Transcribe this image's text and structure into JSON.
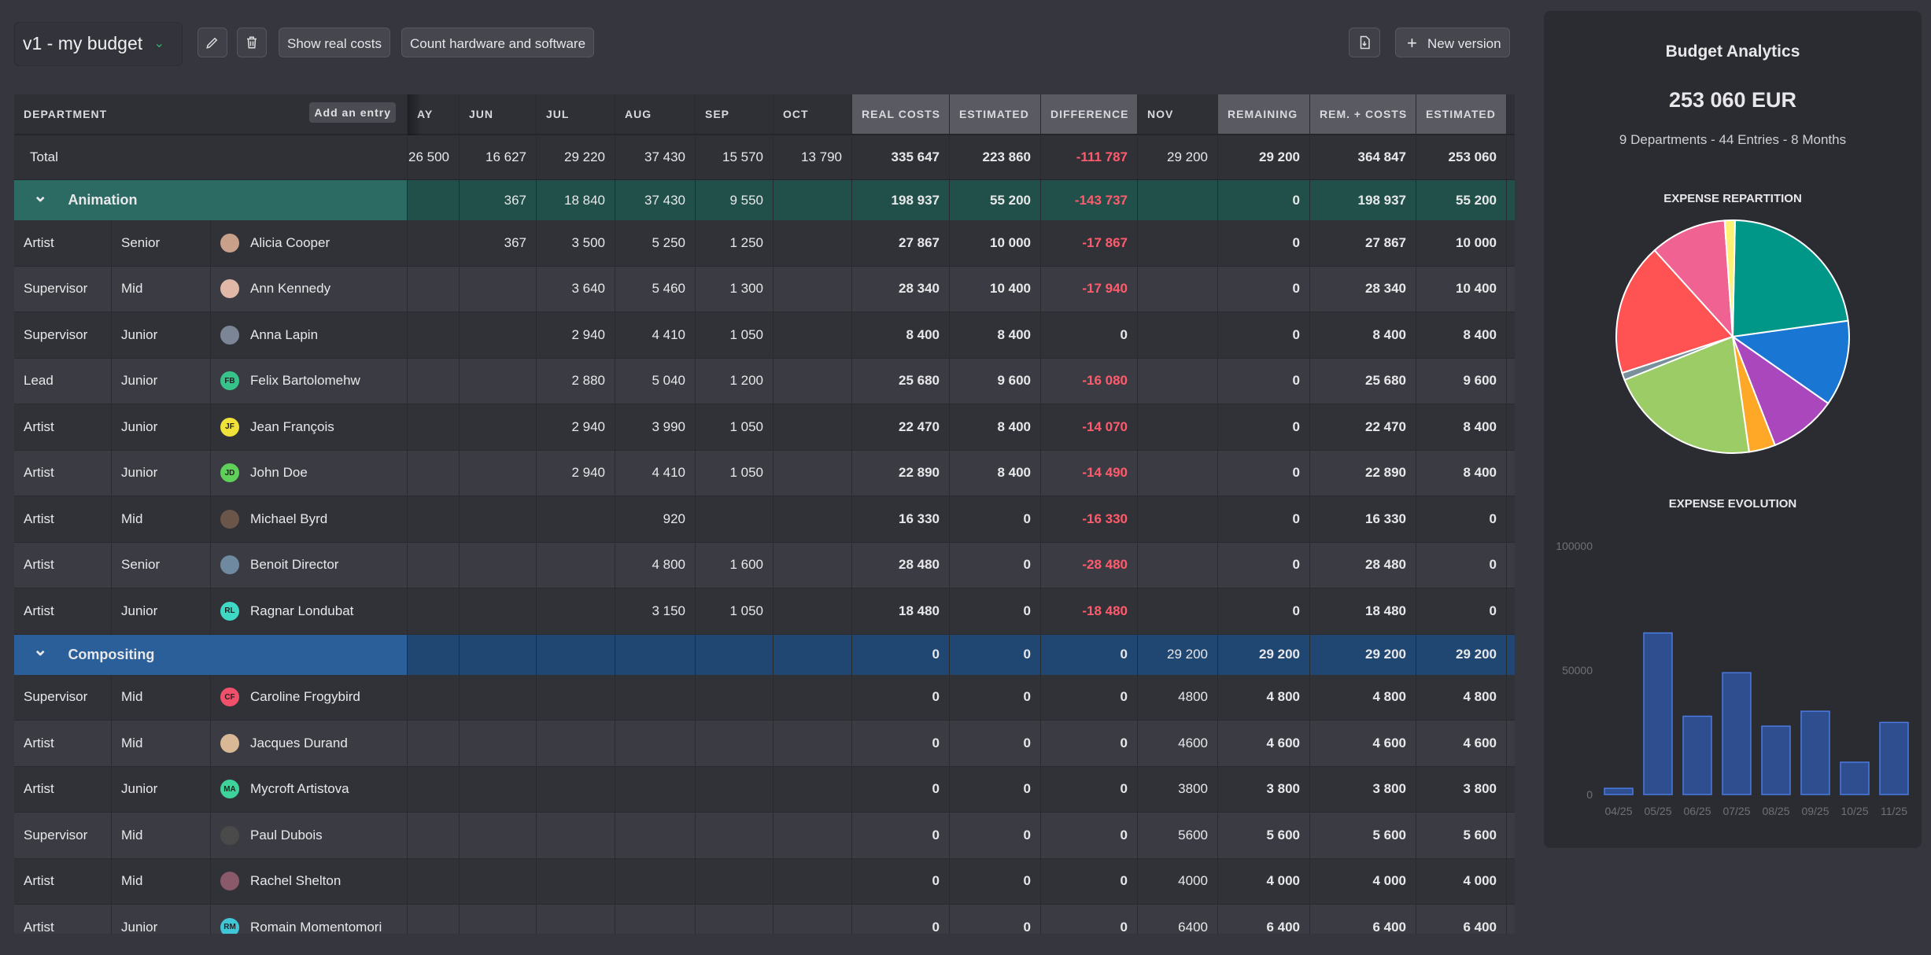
{
  "toolbar": {
    "version": "v1 - my budget",
    "show_real": "Show real costs",
    "count_hw": "Count hardware and software",
    "new_version": "New version",
    "icons": [
      "pencil-icon",
      "trash-icon",
      "chevron-down-icon",
      "file-export-icon",
      "plus-icon"
    ]
  },
  "table": {
    "dept_header": "DEPARTMENT",
    "add_entry": "Add an entry",
    "columns": [
      "AY",
      "JUN",
      "JUL",
      "AUG",
      "SEP",
      "OCT",
      "REAL COSTS",
      "ESTIMATED",
      "DIFFERENCE",
      "NOV",
      "REMAINING",
      "REM. + COSTS",
      "ESTIMATED"
    ],
    "total": {
      "label": "Total",
      "values": [
        "26 500",
        "16 627",
        "29 220",
        "37 430",
        "15 570",
        "13 790",
        "335 647",
        "223 860",
        "-111 787",
        "29 200",
        "29 200",
        "364 847",
        "253 060"
      ]
    },
    "groups": [
      {
        "name": "Animation",
        "color": "#2c6b63",
        "values": [
          "",
          "367",
          "18 840",
          "37 430",
          "9 550",
          "",
          "198 937",
          "55 200",
          "-143 737",
          "",
          "0",
          "198 937",
          "55 200"
        ],
        "rows": [
          {
            "role": "Artist",
            "level": "Senior",
            "person": "Alicia Cooper",
            "initials": "",
            "avatar": "#c9a089",
            "values": [
              "",
              "367",
              "3 500",
              "5 250",
              "1 250",
              "",
              "27 867",
              "10 000",
              "-17 867",
              "",
              "0",
              "27 867",
              "10 000"
            ]
          },
          {
            "role": "Supervisor",
            "level": "Mid",
            "person": "Ann Kennedy",
            "initials": "",
            "avatar": "#e0b8a8",
            "values": [
              "",
              "",
              "3 640",
              "5 460",
              "1 300",
              "",
              "28 340",
              "10 400",
              "-17 940",
              "",
              "0",
              "28 340",
              "10 400"
            ]
          },
          {
            "role": "Supervisor",
            "level": "Junior",
            "person": "Anna Lapin",
            "initials": "",
            "avatar": "#7c8596",
            "values": [
              "",
              "",
              "2 940",
              "4 410",
              "1 050",
              "",
              "8 400",
              "8 400",
              "0",
              "",
              "0",
              "8 400",
              "8 400"
            ]
          },
          {
            "role": "Lead",
            "level": "Junior",
            "person": "Felix Bartolomehw",
            "initials": "FB",
            "avatar": "#37c48a",
            "values": [
              "",
              "",
              "2 880",
              "5 040",
              "1 200",
              "",
              "25 680",
              "9 600",
              "-16 080",
              "",
              "0",
              "25 680",
              "9 600"
            ]
          },
          {
            "role": "Artist",
            "level": "Junior",
            "person": "Jean François",
            "initials": "JF",
            "avatar": "#f1e23a",
            "values": [
              "",
              "",
              "2 940",
              "3 990",
              "1 050",
              "",
              "22 470",
              "8 400",
              "-14 070",
              "",
              "0",
              "22 470",
              "8 400"
            ]
          },
          {
            "role": "Artist",
            "level": "Junior",
            "person": "John Doe",
            "initials": "JD",
            "avatar": "#5fd05a",
            "values": [
              "",
              "",
              "2 940",
              "4 410",
              "1 050",
              "",
              "22 890",
              "8 400",
              "-14 490",
              "",
              "0",
              "22 890",
              "8 400"
            ]
          },
          {
            "role": "Artist",
            "level": "Mid",
            "person": "Michael Byrd",
            "initials": "",
            "avatar": "#6a5548",
            "values": [
              "",
              "",
              "",
              "920",
              "",
              "",
              "16 330",
              "0",
              "-16 330",
              "",
              "0",
              "16 330",
              "0"
            ]
          },
          {
            "role": "Artist",
            "level": "Senior",
            "person": "Benoit Director",
            "initials": "",
            "avatar": "#6f8aa0",
            "values": [
              "",
              "",
              "",
              "4 800",
              "1 600",
              "",
              "28 480",
              "0",
              "-28 480",
              "",
              "0",
              "28 480",
              "0"
            ]
          },
          {
            "role": "Artist",
            "level": "Junior",
            "person": "Ragnar Londubat",
            "initials": "RL",
            "avatar": "#3fd8c4",
            "values": [
              "",
              "",
              "",
              "3 150",
              "1 050",
              "",
              "18 480",
              "0",
              "-18 480",
              "",
              "0",
              "18 480",
              "0"
            ]
          }
        ]
      },
      {
        "name": "Compositing",
        "color": "#2b5f99",
        "values": [
          "",
          "",
          "",
          "",
          "",
          "",
          "0",
          "0",
          "0",
          "29 200",
          "29 200",
          "29 200",
          "29 200"
        ],
        "rows": [
          {
            "role": "Supervisor",
            "level": "Mid",
            "person": "Caroline Frogybird",
            "initials": "CF",
            "avatar": "#f0506a",
            "values": [
              "",
              "",
              "",
              "",
              "",
              "",
              "0",
              "0",
              "0",
              "4800",
              "4 800",
              "4 800",
              "4 800"
            ]
          },
          {
            "role": "Artist",
            "level": "Mid",
            "person": "Jacques Durand",
            "initials": "",
            "avatar": "#d9b896",
            "values": [
              "",
              "",
              "",
              "",
              "",
              "",
              "0",
              "0",
              "0",
              "4600",
              "4 600",
              "4 600",
              "4 600"
            ]
          },
          {
            "role": "Artist",
            "level": "Junior",
            "person": "Mycroft Artistova",
            "initials": "MA",
            "avatar": "#3ed39b",
            "values": [
              "",
              "",
              "",
              "",
              "",
              "",
              "0",
              "0",
              "0",
              "3800",
              "3 800",
              "3 800",
              "3 800"
            ]
          },
          {
            "role": "Supervisor",
            "level": "Mid",
            "person": "Paul Dubois",
            "initials": "",
            "avatar": "#4a4a4a",
            "values": [
              "",
              "",
              "",
              "",
              "",
              "",
              "0",
              "0",
              "0",
              "5600",
              "5 600",
              "5 600",
              "5 600"
            ]
          },
          {
            "role": "Artist",
            "level": "Mid",
            "person": "Rachel Shelton",
            "initials": "",
            "avatar": "#8a5a6a",
            "values": [
              "",
              "",
              "",
              "",
              "",
              "",
              "0",
              "0",
              "0",
              "4000",
              "4 000",
              "4 000",
              "4 000"
            ]
          },
          {
            "role": "Artist",
            "level": "Junior",
            "person": "Romain Momentomori",
            "initials": "RM",
            "avatar": "#3fc7d8",
            "values": [
              "",
              "",
              "",
              "",
              "",
              "",
              "0",
              "0",
              "0",
              "6400",
              "6 400",
              "6 400",
              "6 400"
            ]
          }
        ]
      }
    ]
  },
  "analytics": {
    "title": "Budget Analytics",
    "total": "253 060 EUR",
    "summary": "9 Departments - 44 Entries - 8 Months",
    "pie_title": "EXPENSE REPARTITION",
    "bar_title": "EXPENSE EVOLUTION"
  },
  "chart_data": [
    {
      "type": "pie",
      "title": "EXPENSE REPARTITION",
      "values": [
        55200,
        29200,
        23000,
        9000,
        52000,
        2500,
        45000,
        26000,
        3500
      ],
      "colors": [
        "#009688",
        "#1976d2",
        "#ab47bc",
        "#ffa726",
        "#9ccc65",
        "#78909c",
        "#ff5252",
        "#f06292",
        "#fff176"
      ]
    },
    {
      "type": "bar",
      "title": "EXPENSE EVOLUTION",
      "categories": [
        "04/25",
        "05/25",
        "06/25",
        "07/25",
        "08/25",
        "09/25",
        "10/25",
        "11/25"
      ],
      "values": [
        2500,
        65000,
        31500,
        49000,
        27500,
        33500,
        13000,
        29000
      ],
      "yticks": [
        "100000",
        "50000",
        "0"
      ],
      "ylim": [
        0,
        100000
      ]
    }
  ]
}
